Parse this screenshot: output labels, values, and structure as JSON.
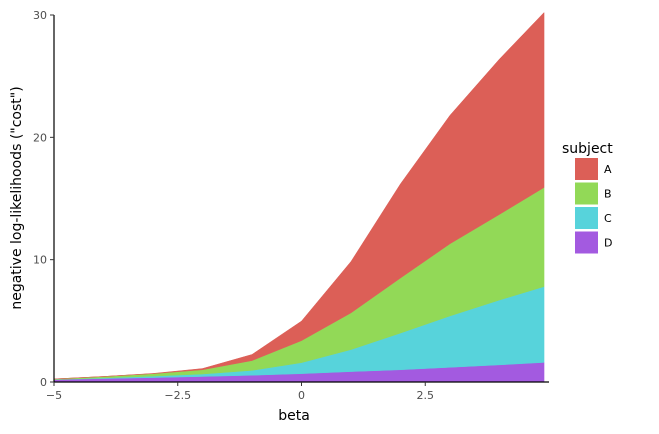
{
  "chart_data": {
    "type": "area",
    "stacked": true,
    "xlabel": "beta",
    "ylabel": "negative log-likelihoods (\"cost\")",
    "xlim": [
      -5,
      5
    ],
    "ylim": [
      0,
      30
    ],
    "x_ticks": [
      -5,
      -2.5,
      0,
      2.5
    ],
    "x_tick_labels": [
      "−5",
      "−2.5",
      "0",
      "2.5"
    ],
    "y_ticks": [
      0,
      10,
      20,
      30
    ],
    "y_tick_labels": [
      "0",
      "10",
      "20",
      "30"
    ],
    "grid": false,
    "legend": {
      "title": "subject",
      "position": "right",
      "entries": [
        "A",
        "B",
        "C",
        "D"
      ]
    },
    "series": [
      {
        "name": "D",
        "color": "#a35ae0",
        "x": [
          -5,
          -4,
          -3,
          -2,
          -1,
          0,
          1,
          2,
          3,
          4,
          4.9
        ],
        "values": [
          0.2,
          0.28,
          0.36,
          0.45,
          0.55,
          0.68,
          0.85,
          1.0,
          1.2,
          1.4,
          1.6
        ]
      },
      {
        "name": "C",
        "color": "#57d3db",
        "x": [
          -5,
          -4,
          -3,
          -2,
          -1,
          0,
          1,
          2,
          3,
          4,
          4.9
        ],
        "values": [
          0.0,
          0.05,
          0.12,
          0.2,
          0.4,
          0.9,
          1.8,
          3.0,
          4.2,
          5.3,
          6.2
        ]
      },
      {
        "name": "B",
        "color": "#92d957",
        "x": [
          -5,
          -4,
          -3,
          -2,
          -1,
          0,
          1,
          2,
          3,
          4,
          4.9
        ],
        "values": [
          0.05,
          0.12,
          0.2,
          0.35,
          0.8,
          1.8,
          3.0,
          4.5,
          5.9,
          7.0,
          8.1
        ]
      },
      {
        "name": "A",
        "color": "#dc5f57",
        "x": [
          -5,
          -4,
          -3,
          -2,
          -1,
          0,
          1,
          2,
          3,
          4,
          4.9
        ],
        "values": [
          0.0,
          0.0,
          0.02,
          0.1,
          0.5,
          1.6,
          4.2,
          7.7,
          10.5,
          12.7,
          14.3
        ]
      }
    ]
  }
}
